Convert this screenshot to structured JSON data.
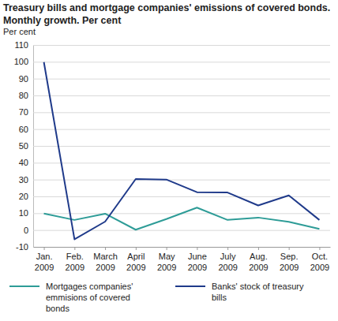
{
  "chart_data": {
    "type": "line",
    "title": "Treasury bills and mortgage companies' emissions of covered bonds. Monthly growth. Per cent",
    "y_label": "Per cent",
    "categories": [
      "Jan. 2009",
      "Feb. 2009",
      "March 2009",
      "April 2009",
      "May 2009",
      "June 2009",
      "July 2009",
      "Aug. 2009",
      "Sep. 2009",
      "Oct. 2009"
    ],
    "series": [
      {
        "name": "Mortgages companies' emmisions of covered bonds",
        "color": "#2e9c97",
        "values": [
          9.8,
          6,
          9.7,
          0.2,
          6.5,
          13.3,
          6,
          7.4,
          4.9,
          0.7
        ]
      },
      {
        "name": "Banks' stock of treasury bills",
        "color": "#1f3a8a",
        "values": [
          99.8,
          -5.5,
          5,
          30.3,
          30,
          22.5,
          22.3,
          14.6,
          20.6,
          6
        ]
      }
    ],
    "ylim": [
      -10,
      110
    ],
    "yticks": [
      -10,
      0,
      10,
      20,
      30,
      40,
      50,
      60,
      70,
      80,
      90,
      100,
      110
    ],
    "grid": true,
    "legend": "bottom"
  }
}
